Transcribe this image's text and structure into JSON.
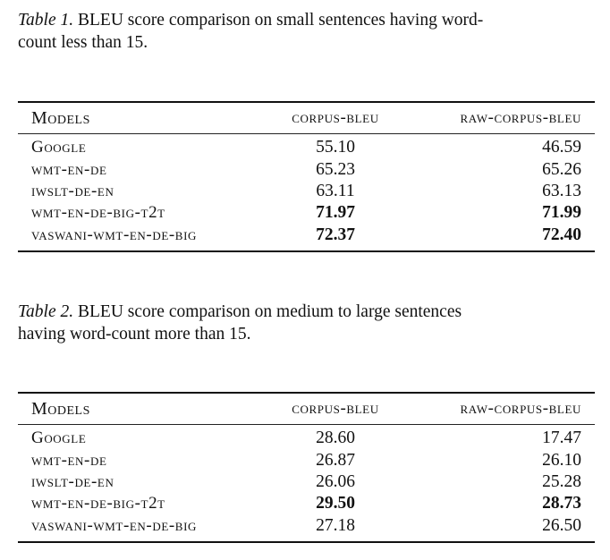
{
  "tables": [
    {
      "caption_label": "Table 1.",
      "caption_text_line1": " BLEU score comparison on small sentences having word-",
      "caption_text_line2": "count less than 15.",
      "headers": {
        "models": "Models",
        "corpus": "corpus-bleu",
        "raw": "raw-corpus-bleu"
      },
      "rows": [
        {
          "model": "Google",
          "corpus": "55.10",
          "raw": "46.59",
          "corpus_bold": false,
          "raw_bold": false
        },
        {
          "model": "wmt-en-de",
          "corpus": "65.23",
          "raw": "65.26",
          "corpus_bold": false,
          "raw_bold": false
        },
        {
          "model": "iwslt-de-en",
          "corpus": "63.11",
          "raw": "63.13",
          "corpus_bold": false,
          "raw_bold": false
        },
        {
          "model": "wmt-en-de-big-t2t",
          "corpus": "71.97",
          "raw": "71.99",
          "corpus_bold": true,
          "raw_bold": true
        },
        {
          "model": "vaswani-wmt-en-de-big",
          "corpus": "72.37",
          "raw": "72.40",
          "corpus_bold": true,
          "raw_bold": true
        }
      ]
    },
    {
      "caption_label": "Table 2.",
      "caption_text_line1": " BLEU score comparison on medium to large sentences",
      "caption_text_line2": "having word-count more than 15.",
      "headers": {
        "models": "Models",
        "corpus": "corpus-bleu",
        "raw": "raw-corpus-bleu"
      },
      "rows": [
        {
          "model": "Google",
          "corpus": "28.60",
          "raw": "17.47",
          "corpus_bold": false,
          "raw_bold": false
        },
        {
          "model": "wmt-en-de",
          "corpus": "26.87",
          "raw": "26.10",
          "corpus_bold": false,
          "raw_bold": false
        },
        {
          "model": "iwslt-de-en",
          "corpus": "26.06",
          "raw": "25.28",
          "corpus_bold": false,
          "raw_bold": false
        },
        {
          "model": "wmt-en-de-big-t2t",
          "corpus": "29.50",
          "raw": "28.73",
          "corpus_bold": true,
          "raw_bold": true
        },
        {
          "model": "vaswani-wmt-en-de-big",
          "corpus": "27.18",
          "raw": "26.50",
          "corpus_bold": false,
          "raw_bold": false
        }
      ]
    }
  ]
}
